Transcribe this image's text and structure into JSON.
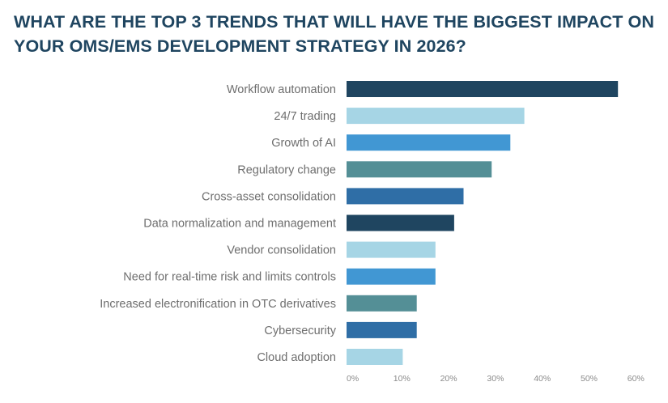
{
  "chart_data": {
    "type": "bar",
    "orientation": "horizontal",
    "title": "WHAT ARE THE TOP 3 TRENDS THAT WILL HAVE THE BIGGEST IMPACT ON YOUR OMS/EMS DEVELOPMENT STRATEGY IN 2026?",
    "xlabel": "",
    "ylabel": "",
    "categories": [
      "Workflow automation",
      "24/7 trading",
      "Growth of AI",
      "Regulatory change",
      "Cross-asset consolidation",
      "Data normalization and management",
      "Vendor consolidation",
      "Need for real-time risk and limits controls",
      "Increased electronification in OTC derivatives",
      "Cybersecurity",
      "Cloud adoption"
    ],
    "values": [
      58,
      38,
      35,
      31,
      25,
      23,
      19,
      19,
      15,
      15,
      12
    ],
    "value_unit": "%",
    "bar_colors": [
      "#1f4560",
      "#a6d5e5",
      "#4197d3",
      "#548f96",
      "#2f6ea6",
      "#1f4560",
      "#a6d5e5",
      "#4197d3",
      "#548f96",
      "#2f6ea6",
      "#a6d5e5"
    ],
    "xlim": [
      0,
      60
    ],
    "x_ticks": [
      0,
      10,
      20,
      30,
      40,
      50,
      60
    ],
    "x_tick_labels": [
      "0%",
      "10%",
      "20%",
      "30%",
      "40%",
      "50%",
      "60%"
    ],
    "grid": false,
    "legend": "none"
  }
}
